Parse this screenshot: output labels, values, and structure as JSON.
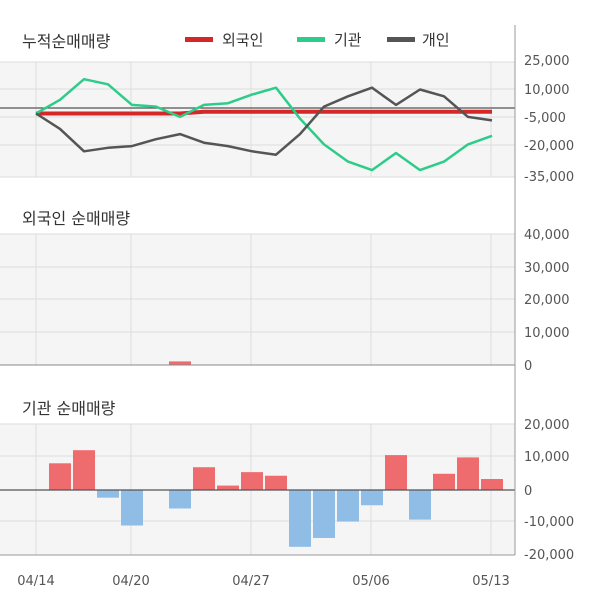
{
  "colors": {
    "foreign": "#d62728",
    "institution": "#2ecc8a",
    "individual": "#555555",
    "bar_positive": "#ee6b6e",
    "bar_negative": "#8fbde6",
    "grid": "#dddddd",
    "plot_bg": "#f5f5f5"
  },
  "x_tick_labels": [
    "04/14",
    "04/20",
    "04/27",
    "05/06",
    "05/13"
  ],
  "chart_data": [
    {
      "type": "line",
      "title": "누적순매매량",
      "legend": {
        "placement": "top",
        "entries": [
          "외국인",
          "기관",
          "개인"
        ]
      },
      "y_tick_labels": [
        "25,000",
        "10,000",
        "-5,000",
        "-20,000",
        "-35,000"
      ],
      "ylim": [
        -37000,
        30000
      ],
      "series": [
        {
          "name": "외국인",
          "values": [
            0,
            0,
            0,
            0,
            0,
            0,
            0,
            1000,
            1000,
            1000,
            1000,
            1000,
            1000,
            1000,
            1000,
            1000,
            1000,
            1000,
            1000,
            1000
          ]
        },
        {
          "name": "기관",
          "values": [
            0,
            8000,
            20000,
            17000,
            5000,
            4000,
            -2000,
            5000,
            6000,
            11000,
            15000,
            -3000,
            -18000,
            -28000,
            -33000,
            -23000,
            -33000,
            -28000,
            -18000,
            -13000
          ]
        },
        {
          "name": "개인",
          "values": [
            0,
            -9000,
            -22000,
            -20000,
            -19000,
            -15000,
            -12000,
            -17000,
            -19000,
            -22000,
            -24000,
            -12000,
            4000,
            10000,
            15000,
            5000,
            14000,
            10000,
            -2000,
            -4000
          ]
        }
      ]
    },
    {
      "type": "bar",
      "title": "외국인 순매매량",
      "y_tick_labels": [
        "40,000",
        "30,000",
        "20,000",
        "10,000",
        "0"
      ],
      "ylim": [
        0,
        40000
      ],
      "values": [
        0,
        0,
        0,
        0,
        0,
        0,
        1100,
        0,
        0,
        0,
        0,
        0,
        0,
        0,
        0,
        0,
        0,
        0,
        0,
        0
      ]
    },
    {
      "type": "bar",
      "title": "기관 순매매량",
      "y_tick_labels": [
        "20,000",
        "10,000",
        "0",
        "-10,000",
        "-20,000"
      ],
      "ylim": [
        -20000,
        20000
      ],
      "values": [
        0,
        8000,
        12000,
        -2500,
        -11000,
        0,
        -5800,
        6800,
        1200,
        5300,
        4200,
        -17500,
        -14800,
        -9800,
        -4800,
        10500,
        -9200,
        4800,
        9800,
        3200
      ]
    }
  ]
}
